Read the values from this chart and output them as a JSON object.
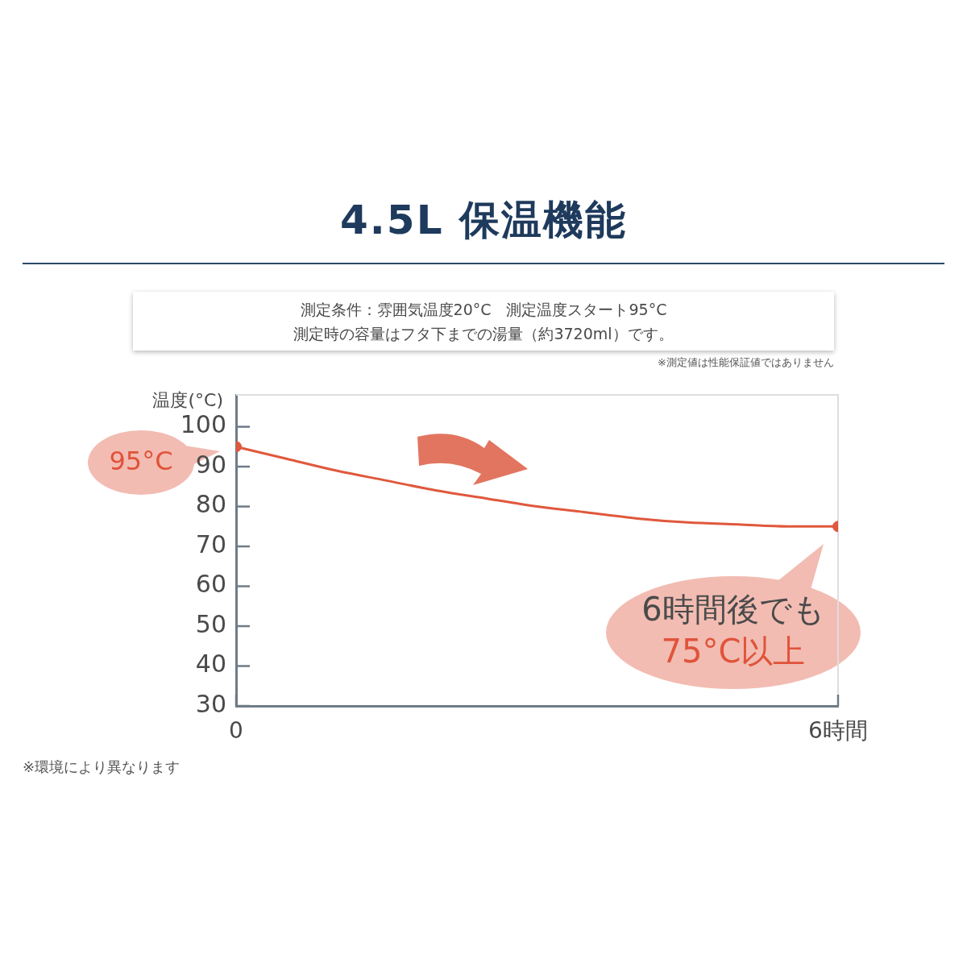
{
  "chart_data": {
    "type": "line",
    "title": "4.5L 保温機能",
    "subtitle": "測定条件：雰囲気温度20°C　測定温度スタート95°C\n測定時の容量はフタ下までの湯量（約3720ml）です。",
    "ylabel": "温度(°C)",
    "xlim": [
      0,
      6
    ],
    "xticks": [
      0,
      {
        "value": 6,
        "label": "6時間"
      }
    ],
    "ylim": [
      30,
      108
    ],
    "yticks": [
      30,
      40,
      50,
      60,
      70,
      80,
      90,
      100
    ],
    "series": [
      {
        "color": "#e0583c",
        "marker": "none",
        "x": [
          0,
          0.5,
          1,
          1.5,
          2,
          2.5,
          3,
          3.5,
          4,
          4.5,
          5,
          5.5,
          6
        ],
        "values": [
          95,
          92,
          89,
          86.5,
          84,
          82,
          80,
          78.5,
          77,
          76,
          75.5,
          75,
          75
        ]
      },
      {
        "type": "scatter",
        "color": "#e0583c",
        "marker": "circle",
        "x": [
          0,
          6
        ],
        "values": [
          95,
          75
        ]
      }
    ],
    "annotations": [
      {
        "text": "95°C",
        "x": 0,
        "y": 95
      },
      {
        "text": "6時間後でも\n75°C以上",
        "x": 6,
        "y": 75
      },
      "※測定値は性能保証値ではありません",
      "※環境により異なります"
    ]
  }
}
